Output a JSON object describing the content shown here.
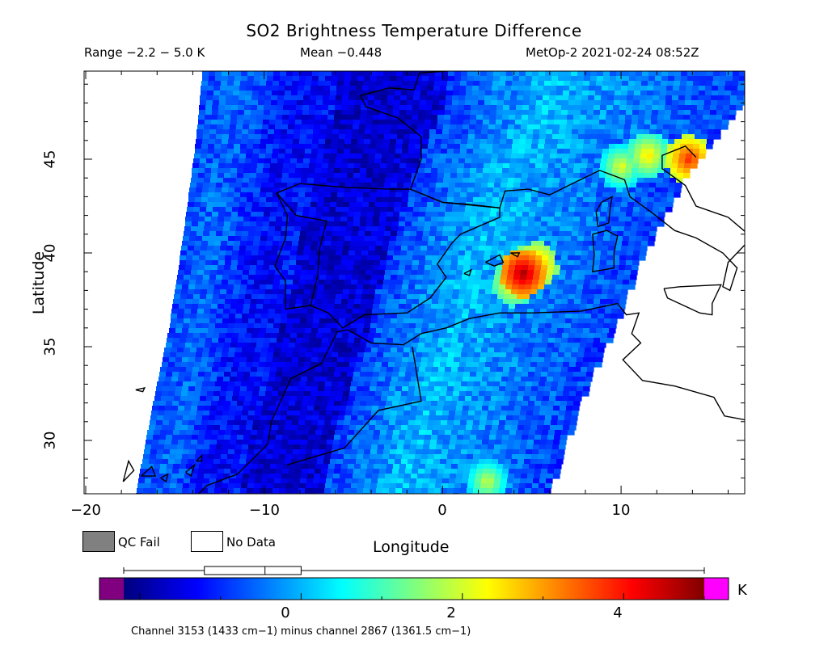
{
  "header": {
    "title": "SO2 Brightness Temperature Difference",
    "range_text": "Range −2.2 − 5.0 K",
    "mean_text": "Mean −0.448",
    "satellite_text": "MetOp-2 2021-02-24 08:52Z"
  },
  "axes": {
    "xlabel": "Longitude",
    "ylabel": "Latitude",
    "lon_range": [
      -20,
      17
    ],
    "lat_range": [
      27,
      50
    ],
    "lon_ticks": [
      -20,
      -10,
      0,
      10
    ],
    "lon_tick_labels": [
      "−20",
      "−10",
      "0",
      "10"
    ],
    "lat_ticks": [
      30,
      35,
      40,
      45
    ],
    "lat_tick_labels": [
      "30",
      "35",
      "40",
      "45"
    ]
  },
  "legend": {
    "qc_fail_label": "QC Fail",
    "qc_fail_color": "#808080",
    "no_data_label": "No Data",
    "no_data_color": "#ffffff"
  },
  "colorbar": {
    "unit": "K",
    "min": -2.2,
    "max": 5.0,
    "tick_values": [
      0,
      2,
      4
    ],
    "tick_labels": [
      "0",
      "2",
      "4"
    ],
    "under_color": "#800080",
    "over_color": "#ff00ff",
    "stops": [
      "#00007f",
      "#0000ff",
      "#007fff",
      "#00ffff",
      "#7fff7f",
      "#ffff00",
      "#ff7f00",
      "#ff0000",
      "#7f0000"
    ],
    "boxplot": {
      "min": -2.2,
      "q1": -1.2,
      "median": -0.448,
      "q3": 0.0,
      "max": 5.0
    }
  },
  "footer": {
    "text": "Channel 3153 (1433 cm−1) minus channel 2867 (1361.5 cm−1)"
  },
  "map_data": {
    "swath_west_edge": [
      [
        -17.2,
        27
      ],
      [
        -16.2,
        32
      ],
      [
        -15.3,
        36
      ],
      [
        -14.5,
        41
      ],
      [
        -13.8,
        46
      ],
      [
        -13.4,
        50
      ]
    ],
    "swath_east_edge": [
      [
        5.8,
        27
      ],
      [
        7.6,
        32
      ],
      [
        9.5,
        36
      ],
      [
        11.2,
        40
      ],
      [
        13.5,
        44
      ],
      [
        17,
        48.2
      ]
    ],
    "qc_fail_color": "#808080",
    "hotspots": [
      {
        "lon": 4.5,
        "lat": 38.9,
        "value": 4.8
      },
      {
        "lon": 5.2,
        "lat": 39.3,
        "value": 3.4
      },
      {
        "lon": 4.0,
        "lat": 38.4,
        "value": 2.8
      },
      {
        "lon": 11.5,
        "lat": 45.2,
        "value": 2.6
      },
      {
        "lon": 13.8,
        "lat": 45.0,
        "value": 3.9
      },
      {
        "lon": 10.0,
        "lat": 44.6,
        "value": 2.2
      },
      {
        "lon": 2.5,
        "lat": 27.8,
        "value": 2.0
      }
    ]
  }
}
